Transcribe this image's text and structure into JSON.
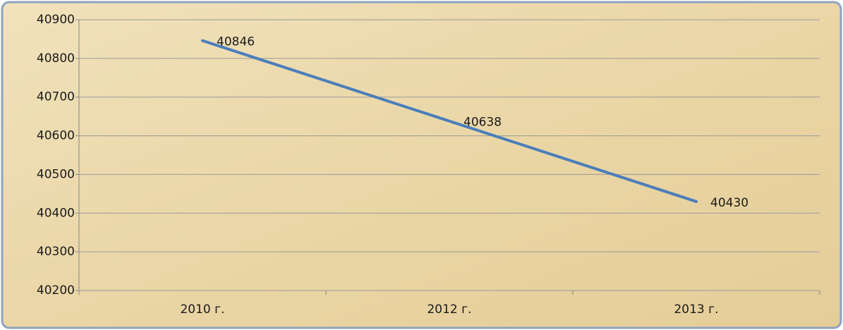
{
  "chart_data": {
    "type": "line",
    "categories": [
      "2010 г.",
      "2012 г.",
      "2013 г."
    ],
    "series": [
      {
        "color": "#4a7ebb",
        "values": [
          40846,
          40638,
          40430
        ]
      }
    ],
    "ylim": [
      40200,
      40900
    ],
    "yticks": [
      40200,
      40300,
      40400,
      40500,
      40600,
      40700,
      40800,
      40900
    ],
    "grid": true
  }
}
